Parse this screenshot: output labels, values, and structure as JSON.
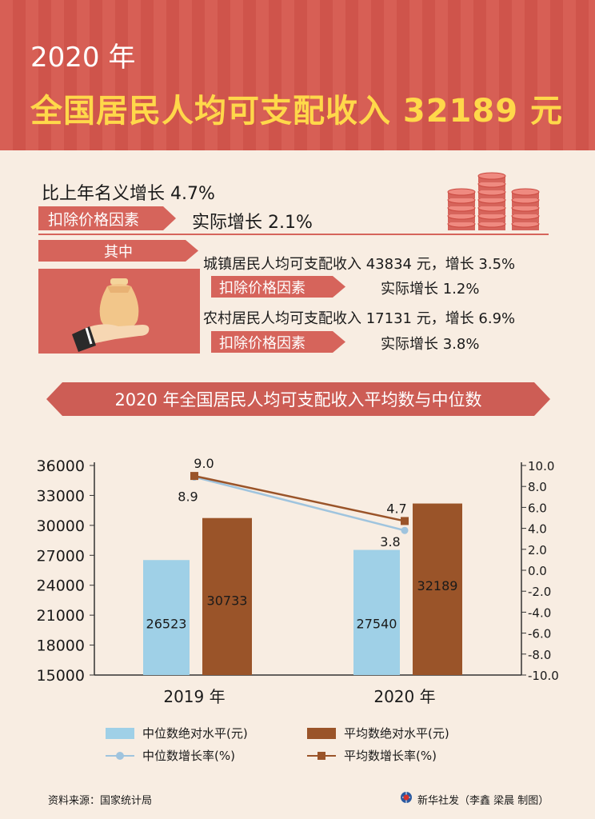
{
  "header": {
    "year_title": "2020 年",
    "main_title": "全国居民人均可支配收入 32189 元"
  },
  "summary": {
    "nominal_growth": "比上年名义增长 4.7%",
    "deflate_tag": "扣除价格因素",
    "real_growth": "实际增长 2.1%"
  },
  "detail": {
    "section_tag": "其中",
    "urban_line": "城镇居民人均可支配收入 43834 元，增长 3.5%",
    "urban_tag": "扣除价格因素",
    "urban_real": "实际增长 1.2%",
    "rural_line": "农村居民人均可支配收入 17131 元，增长 6.9%",
    "rural_tag": "扣除价格因素",
    "rural_real": "实际增长 3.8%"
  },
  "chart_banner": "2020 年全国居民人均可支配收入平均数与中位数",
  "chart_data": {
    "type": "bar",
    "categories": [
      "2019 年",
      "2020 年"
    ],
    "series": [
      {
        "name": "中位数绝对水平(元)",
        "kind": "bar",
        "axis": "left",
        "values": [
          26523,
          27540
        ],
        "color": "#9fd0e7"
      },
      {
        "name": "平均数绝对水平(元)",
        "kind": "bar",
        "axis": "left",
        "values": [
          30733,
          32189
        ],
        "color": "#9a5429"
      },
      {
        "name": "中位数增长率(%)",
        "kind": "line",
        "axis": "right",
        "values": [
          8.9,
          3.8
        ],
        "color": "#9fc4de"
      },
      {
        "name": "平均数增长率(%)",
        "kind": "line",
        "axis": "right",
        "values": [
          9.0,
          4.7
        ],
        "color": "#9a5429"
      }
    ],
    "left_axis": {
      "min": 15000,
      "max": 36000,
      "ticks": [
        "15000",
        "18000",
        "21000",
        "24000",
        "27000",
        "30000",
        "33000",
        "36000"
      ]
    },
    "right_axis": {
      "min": -10,
      "max": 10,
      "ticks": [
        "-10.0",
        "-8.0",
        "-6.0",
        "-4.0",
        "-2.0",
        "0.0",
        "2.0",
        "4.0",
        "6.0",
        "8.0",
        "10.0"
      ]
    },
    "line_labels": {
      "median": [
        "8.9",
        "3.8"
      ],
      "mean": [
        "9.0",
        "4.7"
      ]
    },
    "legend_placement": "bottom"
  },
  "footer": {
    "source": "资料来源：国家统计局",
    "credit": "新华社发（李鑫 梁晨 制图）"
  },
  "icons": [
    "coin-stack-icon",
    "hand-money-bag-icon",
    "xinhua-globe-icon"
  ]
}
